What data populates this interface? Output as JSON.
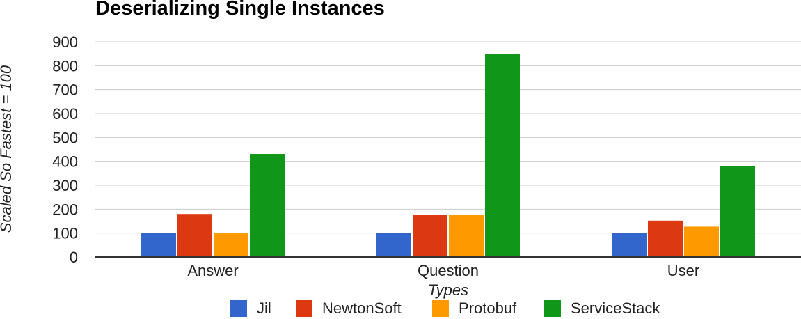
{
  "chart_data": {
    "type": "bar",
    "title": "Deserializing Single Instances",
    "xlabel": "Types",
    "ylabel": "Scaled So Fastest = 100",
    "categories": [
      "Answer",
      "Question",
      "User"
    ],
    "series": [
      {
        "name": "Jil",
        "color": "#3366cc",
        "values": [
          100,
          100,
          100
        ]
      },
      {
        "name": "NewtonSoft",
        "color": "#dc3912",
        "values": [
          180,
          175,
          152
        ]
      },
      {
        "name": "Protobuf",
        "color": "#ff9900",
        "values": [
          100,
          175,
          127
        ]
      },
      {
        "name": "ServiceStack",
        "color": "#109618",
        "values": [
          431,
          850,
          379
        ]
      }
    ],
    "ylim": [
      0,
      900
    ],
    "yticks": [
      "0",
      "100",
      "200",
      "300",
      "400",
      "500",
      "600",
      "700",
      "800",
      "900"
    ],
    "grid": true,
    "legend_position": "bottom"
  }
}
